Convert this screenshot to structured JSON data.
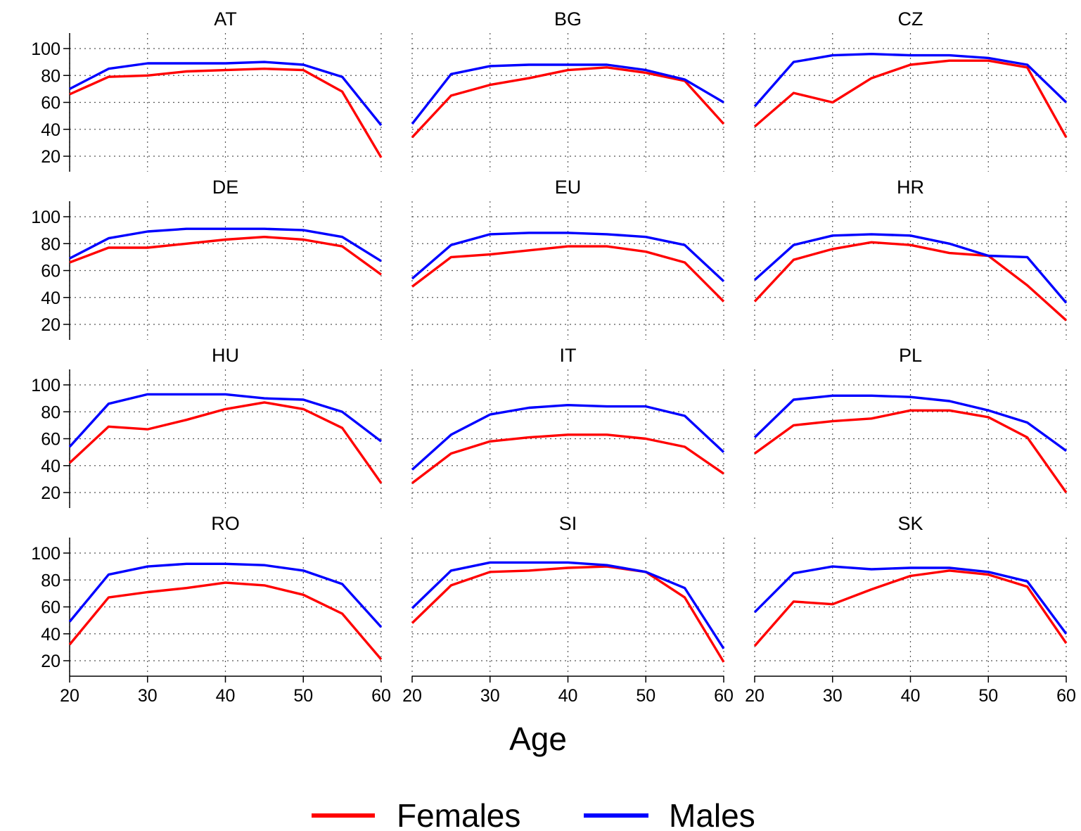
{
  "chart_data": {
    "type": "line",
    "xlabel": "Age",
    "x": [
      20,
      25,
      30,
      35,
      40,
      45,
      50,
      55,
      60
    ],
    "xticks": [
      20,
      30,
      40,
      50,
      60
    ],
    "yticks": [
      20,
      40,
      60,
      80,
      100
    ],
    "xlim": [
      20,
      60
    ],
    "ylim": [
      20,
      100
    ],
    "grid": true,
    "legend_position": "bottom",
    "legend": [
      {
        "name": "Females",
        "color": "#ff0000"
      },
      {
        "name": "Males",
        "color": "#0000ff"
      }
    ],
    "panels": [
      {
        "title": "AT",
        "series": [
          {
            "name": "Females",
            "values": [
              66,
              79,
              80,
              83,
              84,
              85,
              84,
              68,
              19
            ]
          },
          {
            "name": "Males",
            "values": [
              70,
              85,
              89,
              89,
              89,
              90,
              88,
              79,
              43
            ]
          }
        ]
      },
      {
        "title": "BG",
        "series": [
          {
            "name": "Females",
            "values": [
              34,
              65,
              73,
              78,
              84,
              86,
              82,
              76,
              44
            ]
          },
          {
            "name": "Males",
            "values": [
              44,
              81,
              87,
              88,
              88,
              88,
              84,
              77,
              60
            ]
          }
        ]
      },
      {
        "title": "CZ",
        "series": [
          {
            "name": "Females",
            "values": [
              42,
              67,
              60,
              78,
              88,
              91,
              91,
              86,
              34
            ]
          },
          {
            "name": "Males",
            "values": [
              57,
              90,
              95,
              96,
              95,
              95,
              93,
              88,
              60
            ]
          }
        ]
      },
      {
        "title": "DE",
        "series": [
          {
            "name": "Females",
            "values": [
              66,
              77,
              77,
              80,
              83,
              85,
              83,
              78,
              57
            ]
          },
          {
            "name": "Males",
            "values": [
              69,
              84,
              89,
              91,
              91,
              91,
              90,
              85,
              67
            ]
          }
        ]
      },
      {
        "title": "EU",
        "series": [
          {
            "name": "Females",
            "values": [
              48,
              70,
              72,
              75,
              78,
              78,
              74,
              66,
              37
            ]
          },
          {
            "name": "Males",
            "values": [
              54,
              79,
              87,
              88,
              88,
              87,
              85,
              79,
              52
            ]
          }
        ]
      },
      {
        "title": "HR",
        "series": [
          {
            "name": "Females",
            "values": [
              37,
              68,
              76,
              81,
              79,
              73,
              71,
              49,
              23
            ]
          },
          {
            "name": "Males",
            "values": [
              53,
              79,
              86,
              87,
              86,
              80,
              71,
              70,
              36
            ]
          }
        ]
      },
      {
        "title": "HU",
        "series": [
          {
            "name": "Females",
            "values": [
              42,
              69,
              67,
              74,
              82,
              87,
              82,
              68,
              27
            ]
          },
          {
            "name": "Males",
            "values": [
              54,
              86,
              93,
              93,
              93,
              90,
              89,
              80,
              58
            ]
          }
        ]
      },
      {
        "title": "IT",
        "series": [
          {
            "name": "Females",
            "values": [
              27,
              49,
              58,
              61,
              63,
              63,
              60,
              54,
              34
            ]
          },
          {
            "name": "Males",
            "values": [
              37,
              63,
              78,
              83,
              85,
              84,
              84,
              77,
              50
            ]
          }
        ]
      },
      {
        "title": "PL",
        "series": [
          {
            "name": "Females",
            "values": [
              49,
              70,
              73,
              75,
              81,
              81,
              76,
              61,
              20
            ]
          },
          {
            "name": "Males",
            "values": [
              61,
              89,
              92,
              92,
              91,
              88,
              81,
              72,
              51
            ]
          }
        ]
      },
      {
        "title": "RO",
        "series": [
          {
            "name": "Females",
            "values": [
              32,
              67,
              71,
              74,
              78,
              76,
              69,
              55,
              21
            ]
          },
          {
            "name": "Males",
            "values": [
              49,
              84,
              90,
              92,
              92,
              91,
              87,
              77,
              45
            ]
          }
        ]
      },
      {
        "title": "SI",
        "series": [
          {
            "name": "Females",
            "values": [
              48,
              76,
              86,
              87,
              89,
              90,
              86,
              67,
              19
            ]
          },
          {
            "name": "Males",
            "values": [
              59,
              87,
              93,
              93,
              93,
              91,
              86,
              74,
              29
            ]
          }
        ]
      },
      {
        "title": "SK",
        "series": [
          {
            "name": "Females",
            "values": [
              31,
              64,
              62,
              73,
              83,
              87,
              84,
              75,
              33
            ]
          },
          {
            "name": "Males",
            "values": [
              56,
              85,
              90,
              88,
              89,
              89,
              86,
              79,
              40
            ]
          }
        ]
      }
    ]
  }
}
